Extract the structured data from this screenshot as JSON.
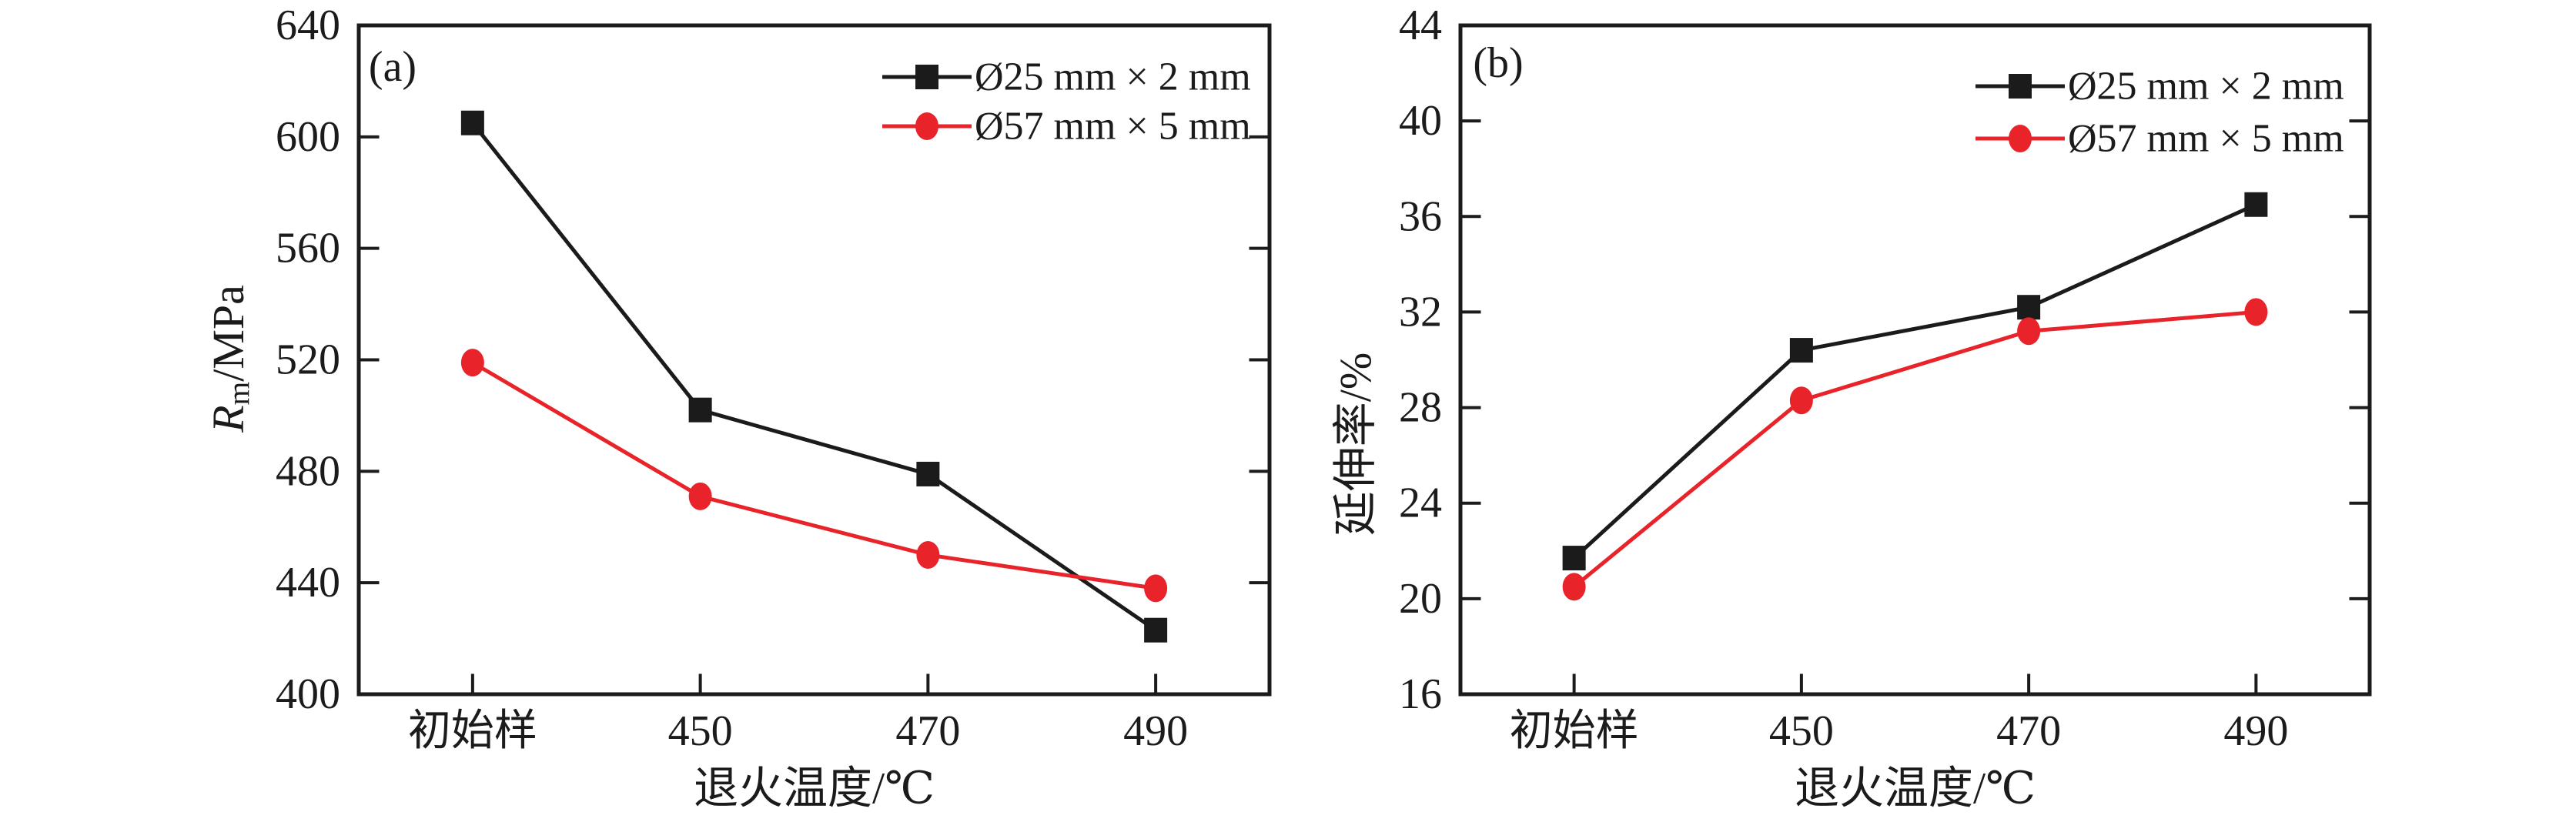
{
  "figure": {
    "background": "#ffffff",
    "axis_color": "#1b1b1b",
    "black_series_color": "#1b1b1b",
    "red_series_color": "#e8232a"
  },
  "chart_data": [
    {
      "type": "line",
      "panel_label": "(a)",
      "categories": [
        "初始样",
        "450",
        "470",
        "490"
      ],
      "xlabel": "退火温度/℃",
      "ylabel": "Rm/MPa",
      "ylabel_rich": [
        {
          "text": "R",
          "style": "italic"
        },
        {
          "text": "m",
          "style": "sub"
        },
        {
          "text": "/MPa",
          "style": "normal"
        }
      ],
      "ylim": [
        400,
        640
      ],
      "yticks": [
        400,
        440,
        480,
        520,
        560,
        600,
        640
      ],
      "grid": false,
      "legend_position": "top-right-inside",
      "series": [
        {
          "name": "Ø25 mm × 2 mm",
          "marker": "square",
          "color": "#1b1b1b",
          "values": [
            605,
            502,
            479,
            423
          ]
        },
        {
          "name": "Ø57 mm × 5 mm",
          "marker": "circle",
          "color": "#e8232a",
          "values": [
            519,
            471,
            450,
            438
          ]
        }
      ]
    },
    {
      "type": "line",
      "panel_label": "(b)",
      "categories": [
        "初始样",
        "450",
        "470",
        "490"
      ],
      "xlabel": "退火温度/℃",
      "ylabel": "延伸率/%",
      "ylabel_rich": [
        {
          "text": "延伸率/%",
          "style": "normal"
        }
      ],
      "ylim": [
        16,
        44
      ],
      "yticks": [
        16,
        20,
        24,
        28,
        32,
        36,
        40,
        44
      ],
      "grid": false,
      "legend_position": "top-right-inside",
      "series": [
        {
          "name": "Ø25 mm × 2 mm",
          "marker": "square",
          "color": "#1b1b1b",
          "values": [
            21.7,
            30.4,
            32.2,
            36.5
          ]
        },
        {
          "name": "Ø57 mm × 5 mm",
          "marker": "circle",
          "color": "#e8232a",
          "values": [
            20.5,
            28.3,
            31.2,
            32.0
          ]
        }
      ]
    }
  ]
}
